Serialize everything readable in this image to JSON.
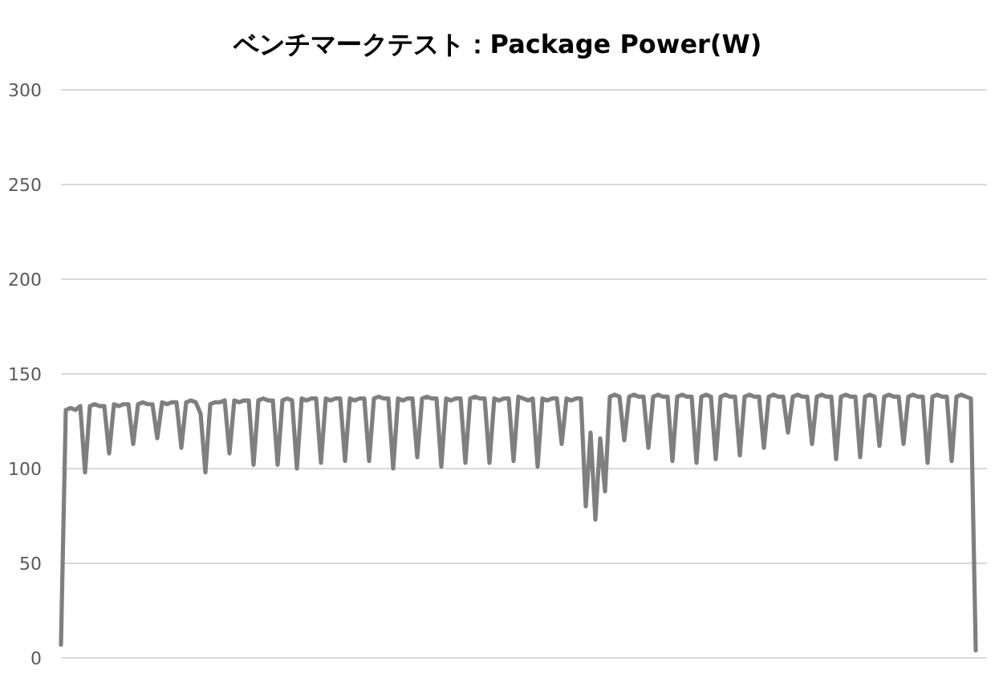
{
  "chart_data": {
    "type": "line",
    "title": "ベンチマークテスト：Package Power(W)",
    "categories": [
      null,
      null,
      null,
      null,
      null,
      null,
      null,
      null,
      null,
      null,
      null,
      null,
      null,
      null,
      null,
      null,
      null,
      null,
      null,
      null,
      null,
      null,
      null,
      null,
      null,
      null,
      null,
      null,
      null,
      null,
      null,
      null,
      null,
      null,
      null,
      null,
      null,
      null,
      null,
      null,
      null,
      null,
      null,
      null,
      null,
      null,
      null,
      null,
      null,
      null,
      null,
      null,
      null,
      null,
      null,
      null,
      null,
      null,
      null,
      null,
      null,
      null,
      null,
      null,
      null,
      null,
      null,
      null,
      null,
      null,
      null,
      null,
      null,
      null,
      null,
      null,
      null,
      null,
      null,
      null,
      null,
      null,
      null,
      null,
      null,
      null,
      null,
      null,
      null,
      null,
      null,
      null,
      null,
      null,
      null,
      null,
      null,
      null,
      null,
      null,
      null,
      null,
      null,
      null,
      null,
      null,
      null,
      null,
      null,
      null,
      null,
      null,
      null,
      null,
      null,
      null,
      null,
      null,
      null,
      null,
      null,
      null,
      null,
      null,
      null,
      null,
      null,
      null,
      null,
      null,
      null,
      null,
      null,
      null,
      null,
      null,
      null,
      null,
      null,
      null,
      null,
      null,
      null,
      null,
      null,
      null,
      null,
      null,
      null,
      null,
      null,
      null,
      null,
      null,
      null,
      null,
      null,
      null,
      null,
      null,
      null,
      null,
      null,
      null,
      null,
      null,
      null,
      null,
      null,
      null,
      null,
      null,
      null,
      null,
      null,
      null,
      null,
      null,
      null,
      null,
      null,
      null,
      null,
      null,
      null,
      null,
      null,
      null,
      null,
      null,
      null
    ],
    "series": [
      {
        "color": "#7f7f7f",
        "values": [
          7,
          131,
          132,
          131,
          133,
          98,
          133,
          134,
          133,
          133,
          108,
          134,
          133,
          134,
          134,
          113,
          134,
          135,
          134,
          134,
          116,
          135,
          134,
          135,
          135,
          111,
          135,
          136,
          135,
          129,
          98,
          134,
          135,
          135,
          136,
          108,
          136,
          135,
          136,
          136,
          102,
          136,
          137,
          136,
          136,
          102,
          136,
          137,
          136,
          100,
          137,
          136,
          137,
          137,
          103,
          137,
          136,
          137,
          137,
          104,
          137,
          136,
          137,
          137,
          104,
          137,
          138,
          137,
          137,
          100,
          137,
          136,
          137,
          137,
          106,
          137,
          138,
          137,
          137,
          101,
          137,
          136,
          137,
          137,
          103,
          137,
          138,
          137,
          137,
          103,
          137,
          136,
          137,
          137,
          104,
          138,
          137,
          136,
          137,
          101,
          137,
          136,
          137,
          137,
          113,
          137,
          136,
          137,
          137,
          80,
          119,
          73,
          116,
          88,
          138,
          139,
          138,
          115,
          138,
          139,
          138,
          138,
          111,
          138,
          139,
          138,
          138,
          104,
          138,
          139,
          138,
          138,
          103,
          138,
          139,
          138,
          105,
          138,
          139,
          138,
          138,
          107,
          138,
          139,
          138,
          138,
          111,
          138,
          139,
          138,
          138,
          119,
          138,
          139,
          138,
          138,
          113,
          138,
          139,
          138,
          138,
          105,
          138,
          139,
          138,
          138,
          106,
          138,
          139,
          138,
          112,
          138,
          139,
          138,
          138,
          113,
          138,
          139,
          138,
          138,
          103,
          138,
          139,
          138,
          138,
          104,
          138,
          139,
          138,
          137,
          4
        ]
      }
    ],
    "ylim": [
      0,
      300
    ],
    "yticks": [
      0,
      50,
      100,
      150,
      200,
      250,
      300
    ],
    "grid": "y",
    "marker": "none",
    "line_style": "solid"
  }
}
